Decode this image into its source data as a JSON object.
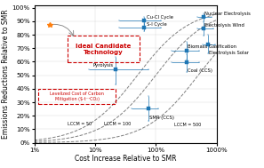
{
  "chart_data": {
    "type": "scatter",
    "xlabel": "Cost Increase Relative to SMR",
    "ylabel": "Emissions Reductions Relative to SMR",
    "log": "x",
    "xlim": [
      1,
      1000
    ],
    "ylim": [
      0.0,
      1.02
    ],
    "xticks": [
      {
        "value": 1,
        "label": "1%"
      },
      {
        "value": 10,
        "label": "10%"
      },
      {
        "value": 100,
        "label": "100%"
      },
      {
        "value": 1000,
        "label": "1000%"
      }
    ],
    "yticks": [
      {
        "value": 0.0,
        "label": "0%"
      },
      {
        "value": 0.1,
        "label": "10%"
      },
      {
        "value": 0.2,
        "label": "20%"
      },
      {
        "value": 0.3,
        "label": "30%"
      },
      {
        "value": 0.4,
        "label": "40%"
      },
      {
        "value": 0.5,
        "label": "50%"
      },
      {
        "value": 0.6,
        "label": "60%"
      },
      {
        "value": 0.7,
        "label": "70%"
      },
      {
        "value": 0.8,
        "label": "80%"
      },
      {
        "value": 0.9,
        "label": "90%"
      },
      {
        "value": 1.0,
        "label": "100%"
      }
    ],
    "grid": true,
    "marker": "square",
    "points": [
      {
        "label": "Cu-Cl Cycle",
        "x": 65,
        "y": 0.905,
        "xerr_lo": 40,
        "xerr_hi": 55,
        "yerr_lo": 0.03,
        "yerr_hi": 0.03
      },
      {
        "label": "S-I Cycle",
        "x": 65,
        "y": 0.855,
        "xerr_lo": 40,
        "xerr_hi": 55,
        "yerr_lo": 0.03,
        "yerr_hi": 0.03
      },
      {
        "label": "Pyrolysis",
        "x": 22,
        "y": 0.545,
        "xerr_lo": 14,
        "xerr_hi": 55,
        "yerr_lo": 0.11,
        "yerr_hi": 0.09
      },
      {
        "label": "SMR (CCS)",
        "x": 75,
        "y": 0.255,
        "xerr_lo": 35,
        "xerr_hi": 35,
        "yerr_lo": 0.09,
        "yerr_hi": 0.09
      },
      {
        "label": "Biomass Gasification",
        "x": 320,
        "y": 0.685,
        "xerr_lo": 140,
        "xerr_hi": 200,
        "yerr_lo": 0.07,
        "yerr_hi": 0.06
      },
      {
        "label": "Coal (CCS)",
        "x": 320,
        "y": 0.595,
        "xerr_lo": 140,
        "xerr_hi": 200,
        "yerr_lo": 0.07,
        "yerr_hi": 0.06
      },
      {
        "label": "Nuclear Electrolysis",
        "x": 620,
        "y": 0.93,
        "xerr_lo": 130,
        "xerr_hi": 200,
        "yerr_lo": 0.03,
        "yerr_hi": 0.03
      },
      {
        "label": "Electrolysis Wind",
        "x": 620,
        "y": 0.845,
        "xerr_lo": 130,
        "xerr_hi": 280,
        "yerr_lo": 0.05,
        "yerr_hi": 0.05
      },
      {
        "label": "Electrolysis Solar",
        "x": 730,
        "y": 0.73,
        "xerr_lo": 130,
        "xerr_hi": 220,
        "yerr_lo": 0.07,
        "yerr_hi": 0.07
      }
    ],
    "reference_curves": [
      {
        "lccm": 50,
        "label": "LCCM = 50",
        "label_x": 3.5,
        "label_y": 0.12
      },
      {
        "lccm": 100,
        "label": "LCCM = 100",
        "label_x": 14,
        "label_y": 0.12
      },
      {
        "lccm": 500,
        "label": "LCCM = 500",
        "label_x": 200,
        "label_y": 0.115
      }
    ],
    "line_style": "dashed",
    "star": {
      "x": 1.8,
      "y": 0.875,
      "marker": "star",
      "arrow_to": [
        4.5,
        0.785
      ]
    },
    "boxes": [
      {
        "text": "Ideal Candidate\nTechnology",
        "x0": 3.5,
        "x1": 55,
        "y0": 0.595,
        "y1": 0.795,
        "color": "#cc0000"
      },
      {
        "text": "Levelized Cost of Carbon\nMitigation ($·t⁻¹CO₂)",
        "x0": 1.15,
        "x1": 22,
        "y0": 0.285,
        "y1": 0.4,
        "color": "#cc0000"
      }
    ]
  }
}
